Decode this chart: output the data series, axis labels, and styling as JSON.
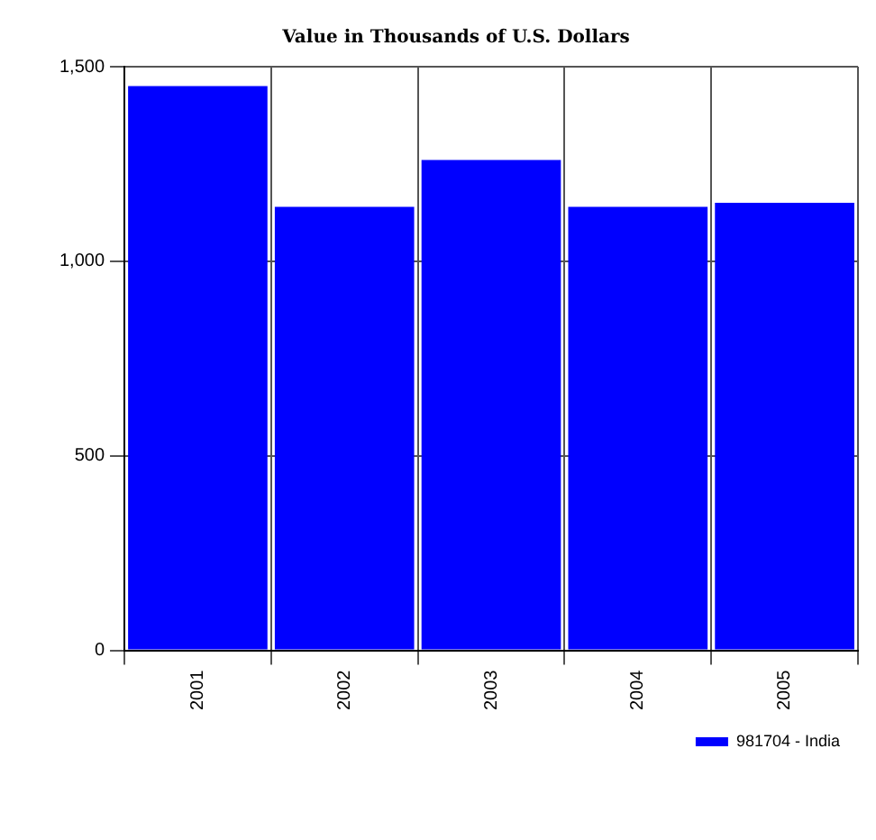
{
  "chart_data": {
    "type": "bar",
    "title": "Value in Thousands of U.S. Dollars",
    "categories": [
      "2001",
      "2002",
      "2003",
      "2004",
      "2005"
    ],
    "series": [
      {
        "name": "981704 - India",
        "color": "#0000ff",
        "values": [
          1450,
          1140,
          1260,
          1140,
          1150
        ]
      }
    ],
    "ylim": [
      0,
      1500
    ],
    "yticks": [
      0,
      500,
      {
        "value": 1000,
        "label": "1,000"
      },
      {
        "value": 1500,
        "label": "1,500"
      }
    ],
    "grid": true,
    "legend": "bottom right"
  }
}
